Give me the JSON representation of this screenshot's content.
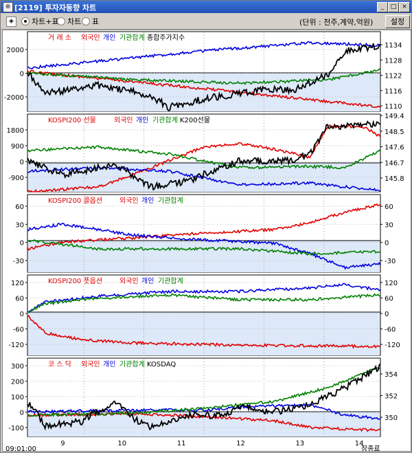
{
  "window": {
    "title": "[2119] 투자자동향 차트"
  },
  "toolbar": {
    "options": [
      {
        "label": "차트+표",
        "selected": true
      },
      {
        "label": "차트",
        "selected": false
      },
      {
        "label": "표",
        "selected": false
      }
    ],
    "unit_label": "(단위 : 천주,계약,억원)",
    "settings_label": "설정"
  },
  "colors": {
    "foreign": "#e00000",
    "individual": "#0000e0",
    "institution": "#008000",
    "index": "#000000",
    "neg_fill": "#dde8f8"
  },
  "x_axis": {
    "days": [
      "9",
      "10",
      "11",
      "12",
      "13",
      "14"
    ],
    "start_time": "09:01:00",
    "end_label": "장종료"
  },
  "chart_data": [
    {
      "type": "line",
      "legend": [
        "거 래 소",
        "외국인",
        "개인",
        "기관합계",
        "종합주가지수"
      ],
      "left_ticks": [
        2000,
        0,
        -2000
      ],
      "right_ticks": [
        1134,
        1128,
        1122,
        1116,
        1110
      ]
    },
    {
      "type": "line",
      "legend": [
        "KOSPI200 선물",
        "외국인",
        "개인",
        "기관합계",
        "K200선물"
      ],
      "left_ticks": [
        1800,
        900,
        0,
        -900
      ],
      "right_ticks": [
        149.4,
        148.5,
        147.6,
        146.7,
        145.8
      ]
    },
    {
      "type": "line",
      "legend": [
        "KOSPI200 콜옵션",
        "외국인",
        "개인",
        "기관합계"
      ],
      "left_ticks": [
        60,
        30,
        0,
        -30
      ],
      "right_ticks": [
        60,
        30,
        0,
        -30
      ]
    },
    {
      "type": "line",
      "legend": [
        "KOSPI200 풋옵션",
        "외국인",
        "개인",
        "기관합계"
      ],
      "left_ticks": [
        120,
        60,
        0,
        -60,
        -120
      ],
      "right_ticks": [
        120,
        60,
        0,
        -60,
        -120
      ]
    },
    {
      "type": "line",
      "legend": [
        "코 스 닥",
        "외국인",
        "개인",
        "기관합계",
        "KOSDAQ"
      ],
      "left_ticks": [
        300,
        200,
        100,
        0,
        -100
      ],
      "right_ticks": [
        354.0,
        352.0,
        350.0
      ]
    }
  ]
}
